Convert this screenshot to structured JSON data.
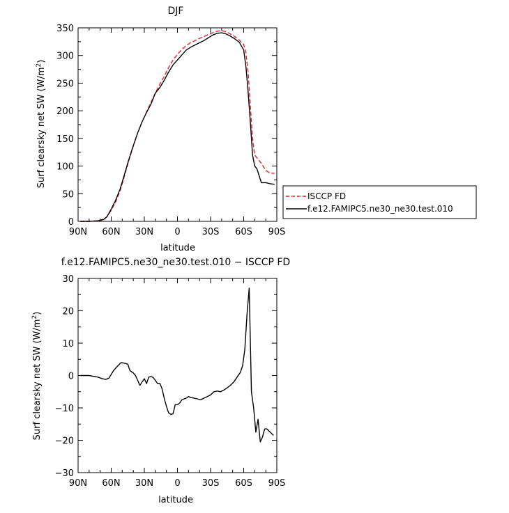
{
  "chart_data": [
    {
      "type": "line",
      "title": "DJF",
      "xlabel": "latitude",
      "ylabel": "Surf clearsky net SW (W/m",
      "ylabel_sup": "2",
      "ylabel_close": ")",
      "xlim": [
        90,
        -90
      ],
      "ylim": [
        0,
        350
      ],
      "x_ticks": [
        90,
        60,
        30,
        0,
        -30,
        -60,
        -90
      ],
      "x_tick_labels": [
        "90N",
        "60N",
        "30N",
        "0",
        "30S",
        "60S",
        "90S"
      ],
      "y_ticks": [
        0,
        50,
        100,
        150,
        200,
        250,
        300,
        350
      ],
      "y_tick_labels": [
        "0",
        "50",
        "100",
        "150",
        "200",
        "250",
        "300",
        "350"
      ],
      "legend": {
        "placement": "right"
      },
      "series": [
        {
          "name": "ISCCP FD",
          "color": "#e8202a",
          "dash": true,
          "x": [
            88,
            80,
            72,
            67,
            64,
            60,
            56,
            52,
            48,
            44,
            40,
            36,
            32,
            28,
            24,
            20,
            16,
            12,
            8,
            4,
            0,
            -4,
            -8,
            -12,
            -16,
            -20,
            -24,
            -28,
            -32,
            -36,
            -40,
            -44,
            -48,
            -52,
            -56,
            -60,
            -62,
            -64,
            -66,
            -68,
            -70,
            -72,
            -76,
            -80,
            -84,
            -88
          ],
          "values": [
            0,
            0,
            1,
            4,
            8,
            20,
            35,
            55,
            82,
            110,
            136,
            160,
            180,
            198,
            215,
            232,
            248,
            262,
            278,
            292,
            302,
            311,
            318,
            323,
            327,
            331,
            334,
            338,
            341,
            344,
            345,
            343,
            339,
            334,
            328,
            320,
            305,
            270,
            210,
            150,
            120,
            115,
            105,
            92,
            87,
            87
          ]
        },
        {
          "name": "f.e12.FAMIPC5.ne30_ne30.test.010",
          "color": "#000000",
          "dash": false,
          "x": [
            88,
            80,
            72,
            67,
            64,
            60,
            56,
            52,
            48,
            44,
            40,
            36,
            32,
            28,
            24,
            20,
            16,
            12,
            8,
            4,
            0,
            -4,
            -8,
            -12,
            -16,
            -20,
            -24,
            -28,
            -32,
            -36,
            -40,
            -44,
            -48,
            -52,
            -56,
            -60,
            -62,
            -64,
            -66,
            -68,
            -70,
            -72,
            -76,
            -80,
            -84,
            -88
          ],
          "values": [
            0,
            0,
            1,
            3,
            8,
            22,
            38,
            58,
            85,
            112,
            137,
            160,
            180,
            197,
            212,
            232,
            242,
            255,
            270,
            283,
            292,
            301,
            310,
            315,
            319,
            323,
            327,
            332,
            337,
            340,
            341,
            339,
            335,
            330,
            324,
            310,
            280,
            235,
            180,
            120,
            100,
            95,
            70,
            70,
            68,
            67
          ]
        }
      ]
    },
    {
      "type": "line",
      "title": "f.e12.FAMIPC5.ne30_ne30.test.010 − ISCCP FD",
      "xlabel": "latitude",
      "ylabel": "Surf clearsky net SW (W/m",
      "ylabel_sup": "2",
      "ylabel_close": ")",
      "xlim": [
        90,
        -90
      ],
      "ylim": [
        -30,
        30
      ],
      "x_ticks": [
        90,
        60,
        30,
        0,
        -30,
        -60,
        -90
      ],
      "x_tick_labels": [
        "90N",
        "60N",
        "30N",
        "0",
        "30S",
        "60S",
        "90S"
      ],
      "y_ticks": [
        -30,
        -20,
        -10,
        0,
        10,
        20,
        30
      ],
      "y_tick_labels": [
        "−30",
        "−20",
        "−10",
        "0",
        "10",
        "20",
        "30"
      ],
      "series": [
        {
          "name": "",
          "color": "#000000",
          "dash": false,
          "x": [
            88,
            80,
            72,
            68,
            65,
            62,
            58,
            54,
            51,
            48,
            45,
            43,
            40,
            38,
            36,
            34,
            32,
            30,
            28,
            26,
            24,
            22,
            20,
            18,
            16,
            14,
            12,
            10,
            8,
            6,
            4,
            2,
            0,
            -2,
            -4,
            -6,
            -8,
            -10,
            -12,
            -15,
            -18,
            -21,
            -24,
            -27,
            -30,
            -33,
            -36,
            -39,
            -42,
            -45,
            -48,
            -51,
            -54,
            -57,
            -59,
            -61,
            -63,
            -65,
            -67,
            -69,
            -71,
            -73,
            -75,
            -77,
            -79,
            -81,
            -84,
            -87
          ],
          "values": [
            0,
            0,
            -0.5,
            -1,
            -1.2,
            -0.8,
            1.5,
            3,
            4,
            3.8,
            3.5,
            1.5,
            0.8,
            0,
            -1.5,
            -3,
            -2,
            -1,
            -2.5,
            -0.5,
            -0.3,
            -0.6,
            -1.5,
            -2.5,
            -2.4,
            -4,
            -7,
            -9.5,
            -11.5,
            -12,
            -11.8,
            -9,
            -9,
            -8.5,
            -7.5,
            -7.2,
            -7,
            -6.5,
            -6.8,
            -7,
            -7.2,
            -7.5,
            -7,
            -6.5,
            -6,
            -5,
            -4.8,
            -5,
            -4.5,
            -3.8,
            -3,
            -2,
            -0.5,
            1,
            3,
            8,
            19,
            27,
            -5,
            -10,
            -17.5,
            -13.5,
            -20.5,
            -19,
            -16.5,
            -16.5,
            -17.5,
            -18.5
          ]
        }
      ]
    }
  ]
}
